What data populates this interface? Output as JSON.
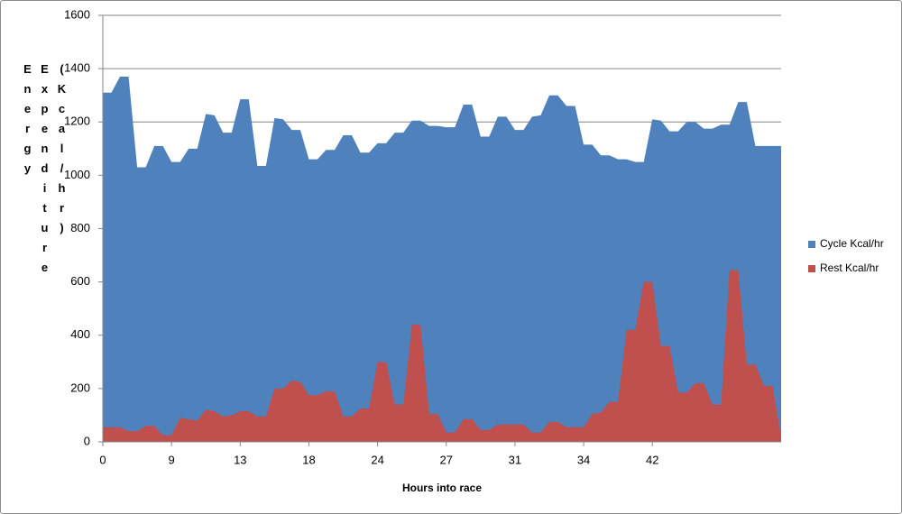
{
  "chart_data": {
    "type": "area",
    "x_label": "Hours into race",
    "y_label": "Energy Expenditure (Kcal/hr)",
    "categories": [
      "0",
      null,
      null,
      null,
      null,
      null,
      null,
      null,
      "9",
      null,
      null,
      null,
      null,
      null,
      null,
      null,
      "13",
      null,
      null,
      null,
      null,
      null,
      null,
      null,
      "18",
      null,
      null,
      null,
      null,
      null,
      null,
      null,
      "24",
      null,
      null,
      null,
      null,
      null,
      null,
      null,
      "27",
      null,
      null,
      null,
      null,
      null,
      null,
      null,
      "31",
      null,
      null,
      null,
      null,
      null,
      null,
      null,
      "34",
      null,
      null,
      null,
      null,
      null,
      null,
      null,
      "42",
      null,
      null,
      null,
      null,
      null,
      null,
      null,
      null,
      null,
      null,
      null,
      null,
      null,
      null,
      null
    ],
    "series": [
      {
        "name": "Cycle Kcal/hr",
        "color": "#4f81bd",
        "values": [
          1310,
          1310,
          1370,
          1370,
          1030,
          1030,
          1110,
          1110,
          1050,
          1050,
          1100,
          1100,
          1230,
          1225,
          1160,
          1160,
          1285,
          1285,
          1035,
          1035,
          1215,
          1210,
          1170,
          1170,
          1060,
          1060,
          1095,
          1095,
          1150,
          1150,
          1085,
          1085,
          1120,
          1120,
          1160,
          1160,
          1205,
          1205,
          1185,
          1185,
          1180,
          1180,
          1265,
          1265,
          1145,
          1145,
          1220,
          1220,
          1170,
          1170,
          1220,
          1225,
          1300,
          1300,
          1260,
          1260,
          1115,
          1115,
          1075,
          1075,
          1060,
          1060,
          1050,
          1050,
          1210,
          1205,
          1165,
          1165,
          1200,
          1200,
          1175,
          1175,
          1190,
          1190,
          1275,
          1275,
          1110,
          1110,
          1110,
          1110
        ]
      },
      {
        "name": "Rest Kcal/hr",
        "color": "#c0504d",
        "values": [
          55,
          55,
          55,
          40,
          40,
          60,
          60,
          25,
          25,
          90,
          85,
          80,
          120,
          115,
          95,
          100,
          115,
          115,
          95,
          95,
          200,
          200,
          230,
          225,
          175,
          175,
          190,
          190,
          95,
          95,
          125,
          125,
          300,
          300,
          140,
          140,
          440,
          440,
          105,
          105,
          35,
          35,
          85,
          85,
          45,
          45,
          65,
          65,
          65,
          65,
          35,
          35,
          75,
          75,
          55,
          55,
          55,
          105,
          110,
          150,
          150,
          420,
          420,
          600,
          600,
          360,
          360,
          185,
          185,
          220,
          220,
          140,
          140,
          645,
          645,
          290,
          290,
          210,
          210,
          20
        ]
      }
    ],
    "ylim": [
      0,
      1600
    ],
    "yticks": [
      0,
      200,
      400,
      600,
      800,
      1000,
      1200,
      1400,
      1600
    ],
    "grid": true,
    "legend": "right"
  }
}
